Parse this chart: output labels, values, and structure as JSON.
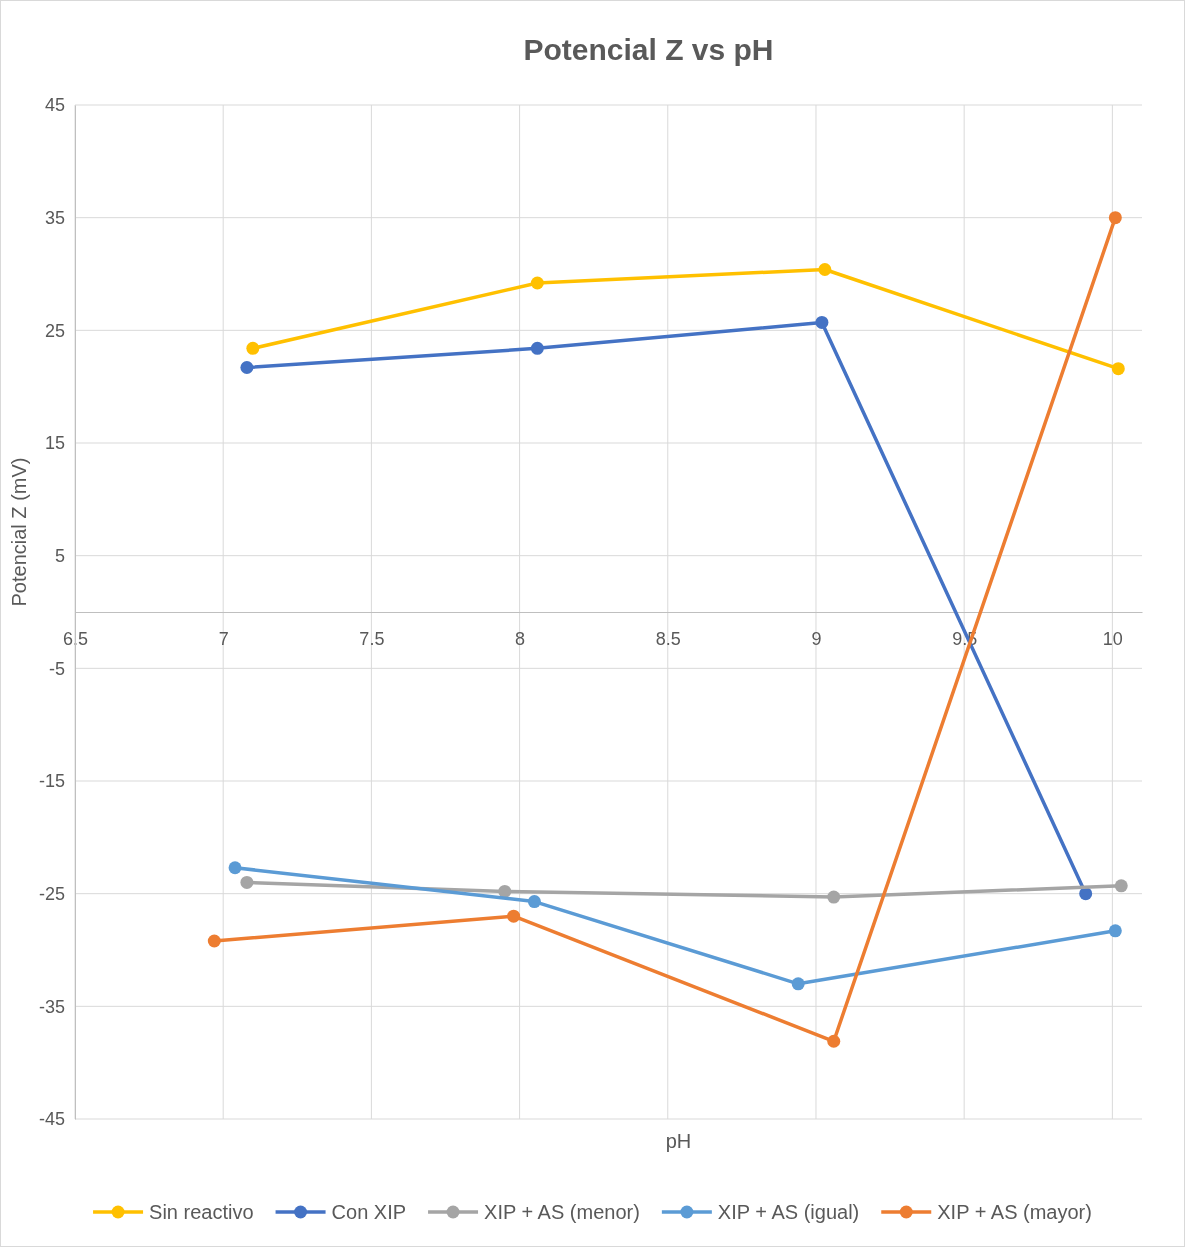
{
  "chart_data": {
    "type": "line",
    "title": "Potencial Z vs pH",
    "xlabel": "pH",
    "ylabel": "Potencial Z (mV)",
    "xlim": [
      6.5,
      10.1
    ],
    "xticks": [
      6.5,
      7,
      7.5,
      8,
      8.5,
      9,
      9.5,
      10
    ],
    "ylim": [
      -45,
      45
    ],
    "yticks": [
      -45,
      -35,
      -25,
      -15,
      -5,
      5,
      15,
      25,
      35,
      45
    ],
    "grid": true,
    "legend": "bottom",
    "marker": "circle",
    "line_style": "solid",
    "series": [
      {
        "name": "Sin reactivo",
        "color": "#ffc000",
        "x": [
          7.1,
          8.06,
          9.03,
          10.02
        ],
        "values": [
          23.4,
          29.2,
          30.4,
          21.6
        ]
      },
      {
        "name": "Con XIP",
        "color": "#4472c4",
        "x": [
          7.08,
          8.06,
          9.02,
          9.91
        ],
        "values": [
          21.7,
          23.4,
          25.7,
          -25.0
        ]
      },
      {
        "name": "XIP + AS (menor)",
        "color": "#a5a5a5",
        "x": [
          7.08,
          7.95,
          9.06,
          10.03
        ],
        "values": [
          -24.0,
          -24.8,
          -25.3,
          -24.3
        ]
      },
      {
        "name": "XIP + AS (igual)",
        "color": "#5b9bd5",
        "x": [
          7.04,
          8.05,
          8.94,
          10.01
        ],
        "values": [
          -22.7,
          -25.7,
          -33.0,
          -28.3
        ]
      },
      {
        "name": "XIP + AS (mayor)",
        "color": "#ed7d31",
        "x": [
          6.97,
          7.98,
          9.06,
          10.01
        ],
        "values": [
          -29.2,
          -27.0,
          -38.1,
          35.0
        ]
      }
    ]
  }
}
